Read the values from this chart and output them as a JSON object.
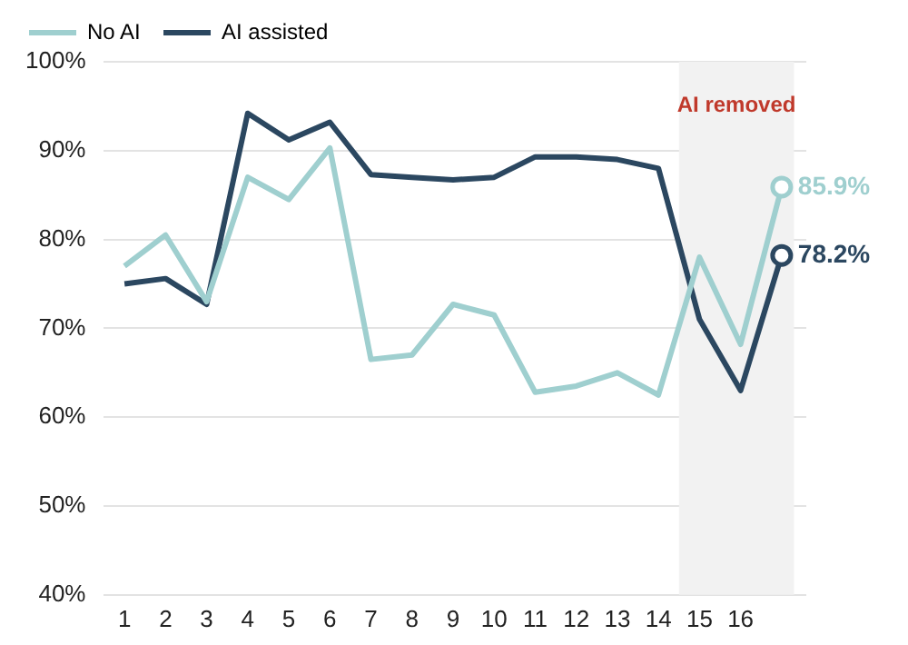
{
  "chart_data": {
    "type": "line",
    "x": [
      1,
      2,
      3,
      4,
      5,
      6,
      7,
      8,
      9,
      10,
      11,
      12,
      13,
      14,
      15,
      16,
      17
    ],
    "series": [
      {
        "name": "No AI",
        "color": "#9fcfcf",
        "values": [
          77,
          80.5,
          73,
          87,
          84.5,
          90.3,
          66.5,
          67,
          72.7,
          71.5,
          62.8,
          63.5,
          65,
          62.5,
          78,
          68.2,
          85.9
        ],
        "value_labels": [
          null,
          null,
          null,
          null,
          null,
          null,
          null,
          null,
          null,
          null,
          null,
          null,
          null,
          null,
          null,
          null,
          "85.9%"
        ]
      },
      {
        "name": "AI assisted",
        "color": "#2b4760",
        "values": [
          75,
          75.6,
          72.7,
          94.2,
          91.2,
          93.2,
          87.3,
          87,
          86.7,
          87,
          89.3,
          89.3,
          89,
          88,
          71,
          63,
          78.2
        ],
        "value_labels": [
          null,
          null,
          null,
          null,
          null,
          null,
          null,
          null,
          null,
          null,
          null,
          null,
          null,
          null,
          null,
          null,
          "78.2%"
        ]
      }
    ],
    "xlim": [
      0.5,
      17.6
    ],
    "xticks": [
      1,
      2,
      3,
      4,
      5,
      6,
      7,
      8,
      9,
      10,
      11,
      12,
      13,
      14,
      15,
      16
    ],
    "ylim": [
      40,
      100
    ],
    "yticks": [
      {
        "value": 40,
        "label": "40%"
      },
      {
        "value": 50,
        "label": "50%"
      },
      {
        "value": 60,
        "label": "60%"
      },
      {
        "value": 70,
        "label": "70%"
      },
      {
        "value": 80,
        "label": "80%"
      },
      {
        "value": 90,
        "label": "90%"
      },
      {
        "value": 100,
        "label": "100%"
      }
    ],
    "bands": [
      {
        "axis": "x",
        "from": 14.5,
        "to": 17.3,
        "label": "AI removed",
        "color": "#f2f2f2"
      }
    ],
    "grid": "y",
    "legend": "top left",
    "line_style": "solid"
  }
}
